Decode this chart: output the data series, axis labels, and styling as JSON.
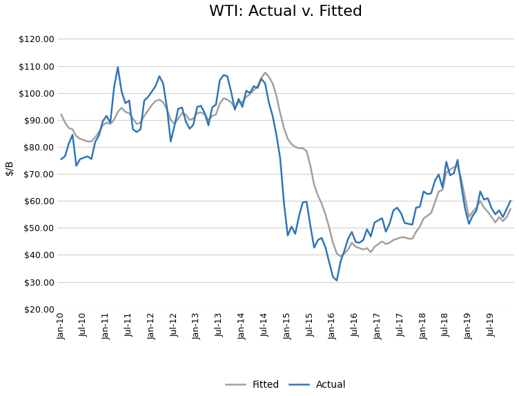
{
  "title": "WTI: Actual v. Fitted",
  "ylabel": "$/B",
  "ylim": [
    20,
    125
  ],
  "yticks": [
    20,
    30,
    40,
    50,
    60,
    70,
    80,
    90,
    100,
    110,
    120
  ],
  "actual_color": "#2E75B6",
  "fitted_color": "#A0A0A0",
  "actual_linewidth": 1.8,
  "fitted_linewidth": 1.8,
  "background_color": "#FFFFFF",
  "plot_bg_color": "#FFFFFF",
  "grid_color": "#D0D0D0",
  "title_fontsize": 16,
  "label_fontsize": 10,
  "tick_fontsize": 9,
  "actual": [
    75.5,
    76.5,
    81.2,
    84.5,
    73.0,
    75.5,
    76.0,
    76.5,
    75.5,
    81.8,
    84.3,
    89.5,
    91.5,
    89.0,
    102.0,
    109.5,
    100.5,
    96.2,
    97.2,
    86.5,
    85.5,
    86.5,
    97.2,
    98.5,
    100.5,
    102.5,
    106.2,
    103.5,
    94.6,
    82.0,
    87.8,
    94.1,
    94.6,
    89.5,
    86.7,
    88.2,
    94.8,
    95.2,
    92.6,
    88.0,
    94.6,
    95.7,
    104.6,
    106.6,
    106.2,
    100.5,
    93.8,
    97.8,
    94.8,
    100.8,
    100.0,
    102.5,
    101.8,
    105.2,
    103.6,
    96.5,
    91.5,
    84.5,
    75.8,
    59.3,
    47.2,
    50.5,
    47.8,
    54.4,
    59.5,
    59.7,
    50.8,
    42.7,
    45.5,
    46.3,
    42.8,
    37.2,
    31.8,
    30.5,
    37.5,
    41.5,
    46.0,
    48.5,
    44.8,
    44.5,
    45.5,
    49.5,
    46.8,
    52.0,
    52.8,
    53.6,
    48.6,
    51.6,
    56.5,
    57.5,
    55.5,
    51.8,
    51.5,
    51.2,
    57.5,
    57.8,
    63.5,
    62.5,
    62.8,
    67.5,
    69.8,
    65.0,
    74.5,
    69.5,
    70.2,
    75.2,
    65.5,
    57.0,
    51.5,
    54.5,
    56.5,
    63.5,
    60.5,
    61.0,
    57.3,
    55.0,
    56.5,
    54.0,
    57.0,
    60.0
  ],
  "fitted": [
    92.0,
    89.0,
    87.0,
    86.5,
    84.0,
    83.0,
    82.5,
    82.0,
    82.0,
    83.5,
    85.5,
    88.0,
    89.0,
    88.5,
    90.0,
    93.0,
    94.5,
    93.0,
    92.5,
    90.5,
    88.5,
    89.0,
    91.5,
    93.5,
    95.5,
    97.0,
    97.5,
    96.5,
    94.0,
    90.0,
    88.5,
    90.5,
    92.5,
    92.0,
    90.0,
    90.5,
    92.5,
    92.8,
    92.0,
    90.0,
    91.5,
    92.0,
    96.0,
    98.0,
    97.5,
    96.5,
    94.5,
    96.5,
    96.5,
    98.5,
    99.5,
    101.0,
    102.5,
    105.5,
    107.5,
    106.0,
    103.5,
    99.0,
    92.5,
    87.0,
    83.0,
    81.0,
    80.0,
    79.5,
    79.5,
    78.5,
    73.0,
    66.0,
    62.0,
    59.0,
    55.0,
    50.0,
    44.5,
    40.5,
    39.5,
    40.5,
    42.0,
    44.5,
    43.0,
    42.5,
    42.0,
    42.5,
    41.0,
    43.0,
    44.0,
    45.0,
    44.0,
    44.5,
    45.5,
    46.0,
    46.5,
    46.5,
    46.0,
    46.0,
    48.5,
    50.5,
    53.5,
    54.5,
    55.5,
    59.5,
    63.5,
    64.0,
    70.5,
    71.5,
    72.5,
    73.0,
    68.0,
    61.0,
    54.0,
    56.0,
    57.5,
    60.0,
    57.5,
    56.0,
    54.0,
    52.0,
    54.0,
    52.5,
    54.0,
    57.0
  ],
  "xtick_labels": [
    "Jan-10",
    "Jul-10",
    "Jan-11",
    "Jul-11",
    "Jan-12",
    "Jul-12",
    "Jan-13",
    "Jul-13",
    "Jan-14",
    "Jul-14",
    "Jan-15",
    "Jul-15",
    "Jan-16",
    "Jul-16",
    "Jan-17",
    "Jul-17",
    "Jan-18",
    "Jul-18",
    "Jan-19",
    "Jul-19"
  ],
  "xtick_positions": [
    0,
    6,
    12,
    18,
    24,
    30,
    36,
    42,
    48,
    54,
    60,
    66,
    72,
    78,
    84,
    90,
    96,
    102,
    108,
    114
  ]
}
